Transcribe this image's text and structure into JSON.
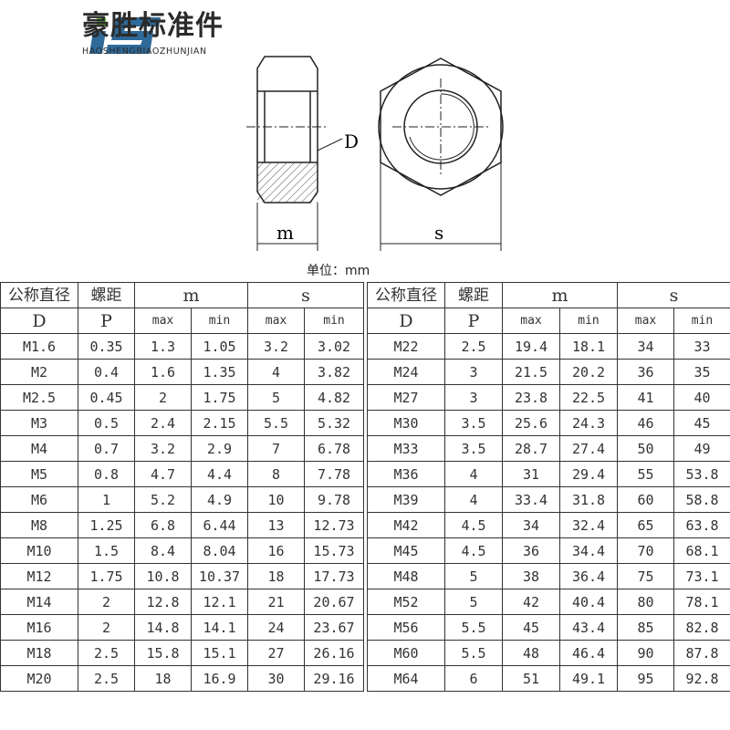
{
  "brand": {
    "name_cn": "豪胜标准件",
    "name_en": "HAOSHENGBIAOZHUNJIAN",
    "logo_letters": "HS",
    "colors": {
      "blue": "#2e6a9a",
      "green": "#6cbf3a"
    }
  },
  "drawing": {
    "label_d": "D",
    "label_m": "m",
    "label_s": "s"
  },
  "unit": "单位：mm",
  "table": {
    "headers": {
      "d_cn": "公称直径",
      "d": "D",
      "p_cn": "螺距",
      "p": "P",
      "m": "m",
      "s": "s",
      "max": "max",
      "min": "min"
    },
    "left_rows": [
      [
        "M1.6",
        "0.35",
        "1.3",
        "1.05",
        "3.2",
        "3.02"
      ],
      [
        "M2",
        "0.4",
        "1.6",
        "1.35",
        "4",
        "3.82"
      ],
      [
        "M2.5",
        "0.45",
        "2",
        "1.75",
        "5",
        "4.82"
      ],
      [
        "M3",
        "0.5",
        "2.4",
        "2.15",
        "5.5",
        "5.32"
      ],
      [
        "M4",
        "0.7",
        "3.2",
        "2.9",
        "7",
        "6.78"
      ],
      [
        "M5",
        "0.8",
        "4.7",
        "4.4",
        "8",
        "7.78"
      ],
      [
        "M6",
        "1",
        "5.2",
        "4.9",
        "10",
        "9.78"
      ],
      [
        "M8",
        "1.25",
        "6.8",
        "6.44",
        "13",
        "12.73"
      ],
      [
        "M10",
        "1.5",
        "8.4",
        "8.04",
        "16",
        "15.73"
      ],
      [
        "M12",
        "1.75",
        "10.8",
        "10.37",
        "18",
        "17.73"
      ],
      [
        "M14",
        "2",
        "12.8",
        "12.1",
        "21",
        "20.67"
      ],
      [
        "M16",
        "2",
        "14.8",
        "14.1",
        "24",
        "23.67"
      ],
      [
        "M18",
        "2.5",
        "15.8",
        "15.1",
        "27",
        "26.16"
      ],
      [
        "M20",
        "2.5",
        "18",
        "16.9",
        "30",
        "29.16"
      ]
    ],
    "right_rows": [
      [
        "M22",
        "2.5",
        "19.4",
        "18.1",
        "34",
        "33"
      ],
      [
        "M24",
        "3",
        "21.5",
        "20.2",
        "36",
        "35"
      ],
      [
        "M27",
        "3",
        "23.8",
        "22.5",
        "41",
        "40"
      ],
      [
        "M30",
        "3.5",
        "25.6",
        "24.3",
        "46",
        "45"
      ],
      [
        "M33",
        "3.5",
        "28.7",
        "27.4",
        "50",
        "49"
      ],
      [
        "M36",
        "4",
        "31",
        "29.4",
        "55",
        "53.8"
      ],
      [
        "M39",
        "4",
        "33.4",
        "31.8",
        "60",
        "58.8"
      ],
      [
        "M42",
        "4.5",
        "34",
        "32.4",
        "65",
        "63.8"
      ],
      [
        "M45",
        "4.5",
        "36",
        "34.4",
        "70",
        "68.1"
      ],
      [
        "M48",
        "5",
        "38",
        "36.4",
        "75",
        "73.1"
      ],
      [
        "M52",
        "5",
        "42",
        "40.4",
        "80",
        "78.1"
      ],
      [
        "M56",
        "5.5",
        "45",
        "43.4",
        "85",
        "82.8"
      ],
      [
        "M60",
        "5.5",
        "48",
        "46.4",
        "90",
        "87.8"
      ],
      [
        "M64",
        "6",
        "51",
        "49.1",
        "95",
        "92.8"
      ]
    ]
  }
}
